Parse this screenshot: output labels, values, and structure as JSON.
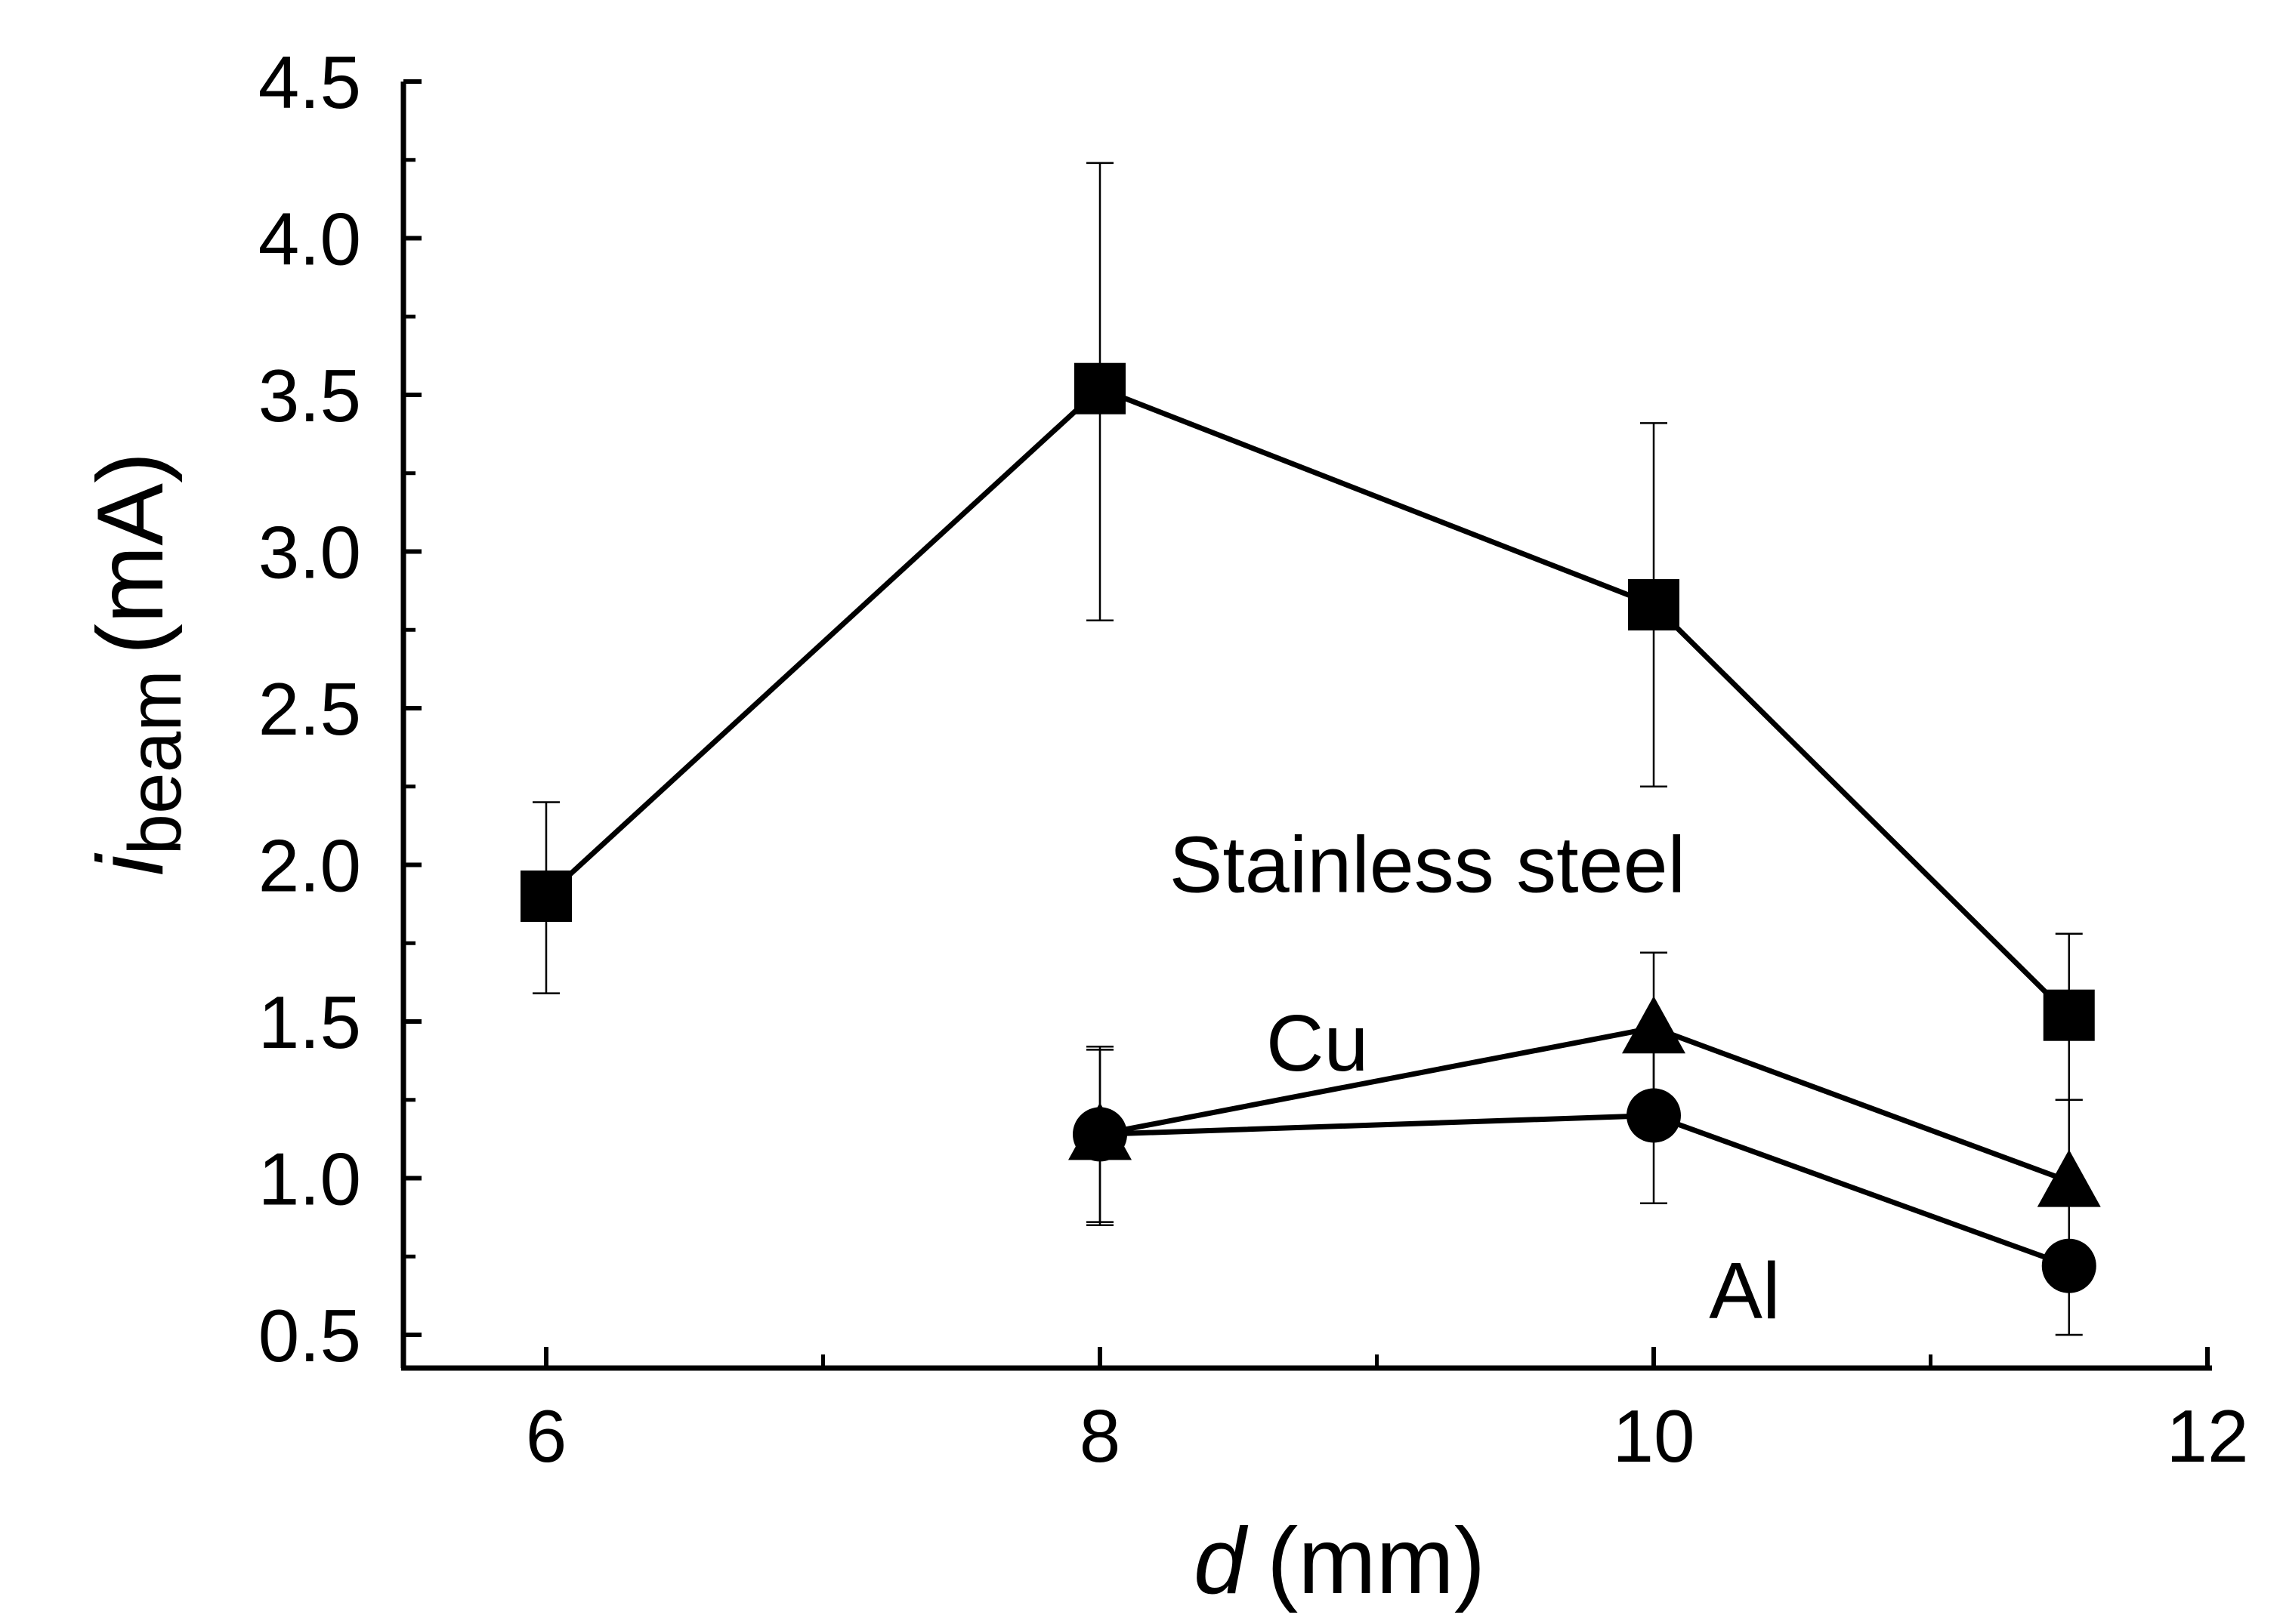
{
  "chart_data": {
    "type": "line",
    "title": "",
    "xlabel": {
      "var": "d",
      "unit": "(mm)"
    },
    "ylabel": {
      "var": "i",
      "sub": "beam",
      "unit": "(mA)"
    },
    "xlim": [
      5.5,
      12
    ],
    "ylim": [
      0.4,
      4.5
    ],
    "xticks": [
      6,
      8,
      10,
      12
    ],
    "xtick_labels": [
      "6",
      "8",
      "10",
      "12"
    ],
    "yticks": [
      0.5,
      1.0,
      1.5,
      2.0,
      2.5,
      3.0,
      3.5,
      4.0,
      4.5
    ],
    "ytick_labels": [
      "0.5",
      "1.0",
      "1.5",
      "2.0",
      "2.5",
      "3.0",
      "3.5",
      "4.0",
      "4.5"
    ],
    "grid": false,
    "series": [
      {
        "name": "Stainless steel",
        "marker": "square",
        "x": [
          6,
          8,
          10,
          11.5
        ],
        "y": [
          1.9,
          3.52,
          2.83,
          1.52
        ],
        "err_low": [
          1.59,
          2.78,
          2.25,
          1.25
        ],
        "err_high": [
          2.2,
          4.24,
          3.41,
          1.78
        ]
      },
      {
        "name": "Cu",
        "marker": "triangle",
        "x": [
          8,
          10,
          11.5
        ],
        "y": [
          1.14,
          1.48,
          0.99
        ],
        "err_low": [
          0.85,
          1.25,
          0.73
        ],
        "err_high": [
          1.42,
          1.72,
          1.25
        ]
      },
      {
        "name": "Al",
        "marker": "circle",
        "x": [
          8,
          10,
          11.5
        ],
        "y": [
          1.14,
          1.2,
          0.72
        ],
        "err_low": [
          0.86,
          0.92,
          0.5
        ],
        "err_high": [
          1.41,
          1.48,
          0.93
        ]
      }
    ],
    "annotations": [
      {
        "text": "Stainless steel",
        "x": 8.25,
        "y": 2.0
      },
      {
        "text": "Cu",
        "x": 8.6,
        "y": 1.43
      },
      {
        "text": "Al",
        "x": 10.2,
        "y": 0.64
      }
    ]
  }
}
